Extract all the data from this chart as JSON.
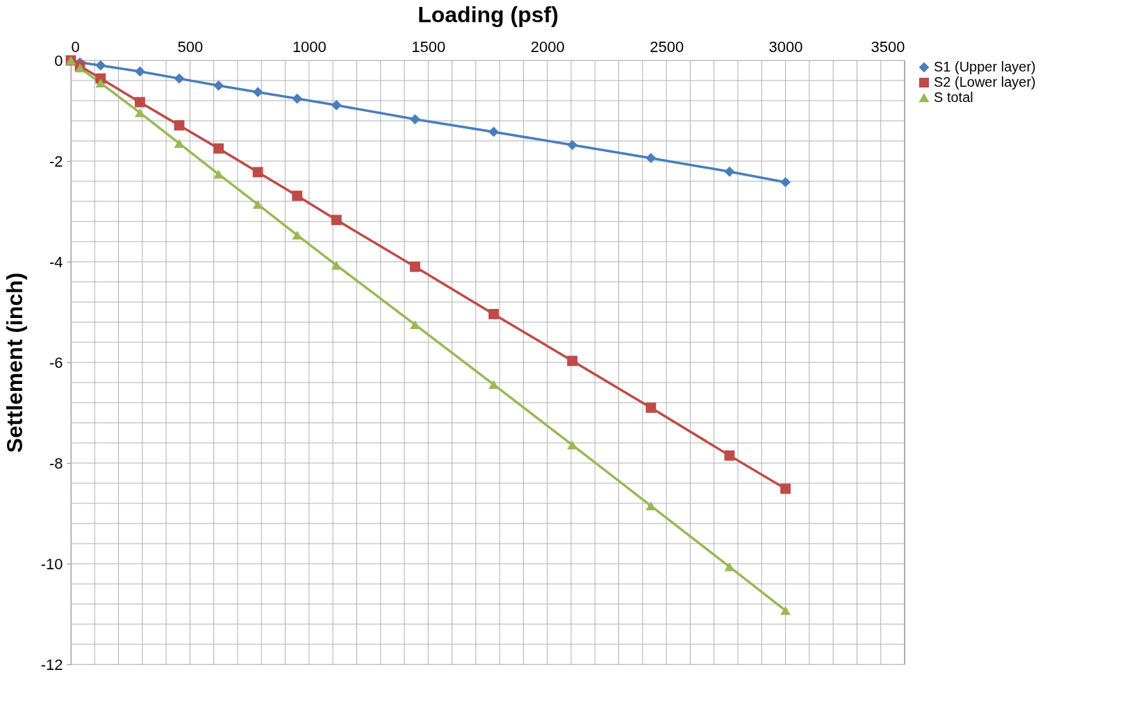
{
  "chart_data": {
    "type": "line",
    "xlabel": "Loading (psf)",
    "ylabel": "Settlement (inch)",
    "x": [
      0,
      38,
      125,
      290,
      455,
      620,
      785,
      950,
      1115,
      1445,
      1775,
      2105,
      2435,
      2765,
      3000
    ],
    "series": [
      {
        "name": "S1 (Upper layer)",
        "color": "#4a7ebb",
        "marker": "diamond",
        "values": [
          0,
          -0.04,
          -0.1,
          -0.22,
          -0.36,
          -0.5,
          -0.63,
          -0.76,
          -0.89,
          -1.17,
          -1.42,
          -1.68,
          -1.94,
          -2.21,
          -2.42
        ]
      },
      {
        "name": "S2 (Lower layer)",
        "color": "#be4b48",
        "marker": "square",
        "values": [
          0,
          -0.11,
          -0.36,
          -0.83,
          -1.29,
          -1.75,
          -2.22,
          -2.69,
          -3.17,
          -4.1,
          -5.04,
          -5.97,
          -6.9,
          -7.85,
          -8.51
        ]
      },
      {
        "name": "S total",
        "color": "#98b954",
        "marker": "triangle",
        "values": [
          0,
          -0.15,
          -0.45,
          -1.04,
          -1.65,
          -2.26,
          -2.86,
          -3.47,
          -4.07,
          -5.25,
          -6.44,
          -7.64,
          -8.85,
          -10.06,
          -10.93
        ]
      }
    ],
    "xlim": [
      0,
      3500
    ],
    "xticks": [
      0,
      500,
      1000,
      1500,
      2000,
      2500,
      3000,
      3500
    ],
    "ylim": [
      -12,
      0
    ],
    "yticks": [
      -12,
      -10,
      -8,
      -6,
      -4,
      -2,
      0
    ],
    "grid": true,
    "legend": "right",
    "line_style": "solid"
  }
}
